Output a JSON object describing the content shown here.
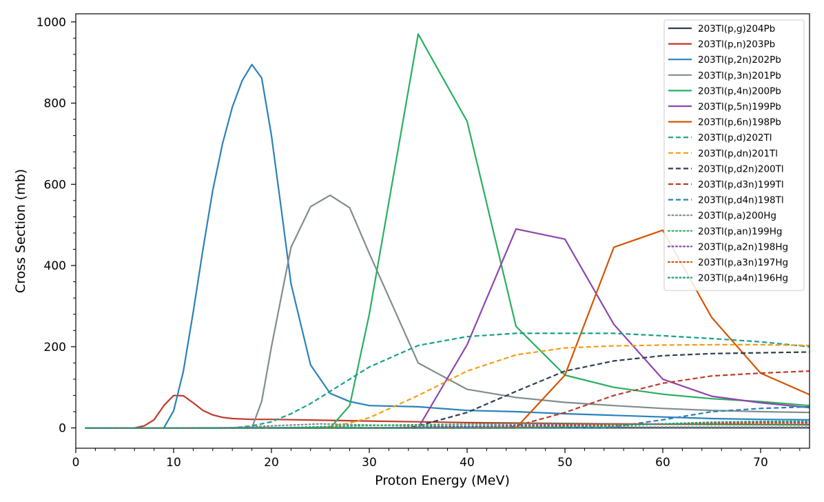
{
  "chart_data": {
    "type": "line",
    "title": "",
    "xlabel": "Proton Energy (MeV)",
    "ylabel": "Cross Section (mb)",
    "xlim": [
      0,
      75
    ],
    "ylim": [
      -50,
      1020
    ],
    "xticks": [
      0,
      10,
      20,
      30,
      40,
      50,
      60,
      70
    ],
    "yticks": [
      0,
      200,
      400,
      600,
      800,
      1000
    ],
    "grid": false,
    "legend_position": "top-right",
    "series": [
      {
        "name": "203Tl(p,g)204Pb",
        "color": "#2c3e50",
        "style": "solid",
        "points": [
          [
            1,
            0
          ],
          [
            10,
            0
          ],
          [
            20,
            0.5
          ],
          [
            30,
            0.5
          ],
          [
            40,
            0.3
          ],
          [
            50,
            0.2
          ],
          [
            60,
            0.2
          ],
          [
            75,
            0.2
          ]
        ]
      },
      {
        "name": "203Tl(p,n)203Pb",
        "color": "#c0392b",
        "style": "solid",
        "points": [
          [
            1,
            0
          ],
          [
            6,
            0
          ],
          [
            7,
            5
          ],
          [
            8,
            20
          ],
          [
            9,
            55
          ],
          [
            10,
            80
          ],
          [
            11,
            79
          ],
          [
            12,
            62
          ],
          [
            13,
            43
          ],
          [
            14,
            32
          ],
          [
            15,
            26
          ],
          [
            16,
            23
          ],
          [
            18,
            21
          ],
          [
            20,
            21
          ],
          [
            25,
            19
          ],
          [
            30,
            17
          ],
          [
            35,
            15
          ],
          [
            40,
            13
          ],
          [
            45,
            12
          ],
          [
            50,
            11
          ],
          [
            55,
            10
          ],
          [
            60,
            9
          ],
          [
            65,
            9
          ],
          [
            70,
            8
          ],
          [
            75,
            8
          ]
        ]
      },
      {
        "name": "203Tl(p,2n)202Pb",
        "color": "#2980b9",
        "style": "solid",
        "points": [
          [
            1,
            0
          ],
          [
            9,
            0
          ],
          [
            10,
            42
          ],
          [
            11,
            140
          ],
          [
            12,
            285
          ],
          [
            13,
            440
          ],
          [
            14,
            585
          ],
          [
            15,
            700
          ],
          [
            16,
            790
          ],
          [
            17,
            855
          ],
          [
            18,
            895
          ],
          [
            19,
            862
          ],
          [
            20,
            720
          ],
          [
            21,
            540
          ],
          [
            22,
            355
          ],
          [
            24,
            155
          ],
          [
            26,
            85
          ],
          [
            28,
            65
          ],
          [
            30,
            55
          ],
          [
            35,
            52
          ],
          [
            40,
            43
          ],
          [
            45,
            40
          ],
          [
            50,
            35
          ],
          [
            55,
            31
          ],
          [
            60,
            27
          ],
          [
            65,
            23
          ],
          [
            70,
            21
          ],
          [
            75,
            20
          ]
        ]
      },
      {
        "name": "203Tl(p,3n)201Pb",
        "color": "#7f8c8d",
        "style": "solid",
        "points": [
          [
            1,
            0
          ],
          [
            18,
            0
          ],
          [
            19,
            65
          ],
          [
            20,
            200
          ],
          [
            22,
            445
          ],
          [
            24,
            545
          ],
          [
            26,
            573
          ],
          [
            28,
            542
          ],
          [
            30,
            430
          ],
          [
            35,
            160
          ],
          [
            40,
            95
          ],
          [
            45,
            75
          ],
          [
            50,
            63
          ],
          [
            55,
            55
          ],
          [
            60,
            48
          ],
          [
            65,
            43
          ],
          [
            70,
            40
          ],
          [
            75,
            38
          ]
        ]
      },
      {
        "name": "203Tl(p,4n)200Pb",
        "color": "#27ae60",
        "style": "solid",
        "points": [
          [
            1,
            0
          ],
          [
            26,
            0
          ],
          [
            28,
            55
          ],
          [
            30,
            280
          ],
          [
            35,
            970
          ],
          [
            40,
            755
          ],
          [
            45,
            250
          ],
          [
            50,
            130
          ],
          [
            55,
            100
          ],
          [
            60,
            83
          ],
          [
            65,
            72
          ],
          [
            70,
            65
          ],
          [
            75,
            55
          ]
        ]
      },
      {
        "name": "203Tl(p,5n)199Pb",
        "color": "#8e44ad",
        "style": "solid",
        "points": [
          [
            1,
            0
          ],
          [
            35,
            0
          ],
          [
            40,
            205
          ],
          [
            45,
            490
          ],
          [
            50,
            465
          ],
          [
            55,
            255
          ],
          [
            60,
            120
          ],
          [
            65,
            78
          ],
          [
            70,
            62
          ],
          [
            75,
            50
          ]
        ]
      },
      {
        "name": "203Tl(p,6n)198Pb",
        "color": "#d35400",
        "style": "solid",
        "points": [
          [
            1,
            0
          ],
          [
            45,
            0
          ],
          [
            50,
            130
          ],
          [
            55,
            445
          ],
          [
            60,
            487
          ],
          [
            65,
            272
          ],
          [
            70,
            135
          ],
          [
            75,
            82
          ]
        ]
      },
      {
        "name": "203Tl(p,d)202Tl",
        "color": "#16a085",
        "style": "dashed",
        "points": [
          [
            1,
            0
          ],
          [
            16,
            0
          ],
          [
            18,
            5
          ],
          [
            20,
            15
          ],
          [
            22,
            35
          ],
          [
            24,
            60
          ],
          [
            26,
            90
          ],
          [
            28,
            120
          ],
          [
            30,
            150
          ],
          [
            35,
            203
          ],
          [
            40,
            225
          ],
          [
            45,
            233
          ],
          [
            50,
            233
          ],
          [
            55,
            233
          ],
          [
            60,
            227
          ],
          [
            65,
            220
          ],
          [
            70,
            212
          ],
          [
            75,
            200
          ]
        ]
      },
      {
        "name": "203Tl(p,dn)201Tl",
        "color": "#f39c12",
        "style": "dashed",
        "points": [
          [
            1,
            0
          ],
          [
            25,
            0
          ],
          [
            28,
            12
          ],
          [
            30,
            25
          ],
          [
            35,
            80
          ],
          [
            40,
            140
          ],
          [
            45,
            180
          ],
          [
            50,
            197
          ],
          [
            55,
            202
          ],
          [
            60,
            204
          ],
          [
            65,
            205
          ],
          [
            70,
            205
          ],
          [
            75,
            203
          ]
        ]
      },
      {
        "name": "203Tl(p,d2n)200Tl",
        "color": "#2c3e50",
        "style": "dashed",
        "points": [
          [
            1,
            0
          ],
          [
            34,
            0
          ],
          [
            35,
            5
          ],
          [
            40,
            38
          ],
          [
            45,
            90
          ],
          [
            50,
            140
          ],
          [
            55,
            165
          ],
          [
            60,
            178
          ],
          [
            65,
            183
          ],
          [
            70,
            185
          ],
          [
            75,
            187
          ]
        ]
      },
      {
        "name": "203Tl(p,d3n)199Tl",
        "color": "#c0392b",
        "style": "dashed",
        "points": [
          [
            1,
            0
          ],
          [
            44,
            0
          ],
          [
            45,
            5
          ],
          [
            50,
            38
          ],
          [
            55,
            80
          ],
          [
            60,
            110
          ],
          [
            65,
            128
          ],
          [
            70,
            135
          ],
          [
            75,
            140
          ]
        ]
      },
      {
        "name": "203Tl(p,d4n)198Tl",
        "color": "#2980b9",
        "style": "dashed",
        "points": [
          [
            1,
            0
          ],
          [
            54,
            0
          ],
          [
            55,
            3
          ],
          [
            60,
            20
          ],
          [
            65,
            40
          ],
          [
            70,
            48
          ],
          [
            75,
            52
          ]
        ]
      },
      {
        "name": "203Tl(p,a)200Hg",
        "color": "#7f8c8d",
        "style": "dotted",
        "points": [
          [
            1,
            0
          ],
          [
            15,
            0
          ],
          [
            20,
            5
          ],
          [
            25,
            10
          ],
          [
            30,
            7
          ],
          [
            35,
            5
          ],
          [
            40,
            4
          ],
          [
            45,
            3
          ],
          [
            50,
            3
          ],
          [
            60,
            2
          ],
          [
            75,
            2
          ]
        ]
      },
      {
        "name": "203Tl(p,an)199Hg",
        "color": "#27ae60",
        "style": "dotted",
        "points": [
          [
            1,
            0
          ],
          [
            20,
            0
          ],
          [
            25,
            3
          ],
          [
            30,
            6
          ],
          [
            35,
            8
          ],
          [
            40,
            9
          ],
          [
            45,
            10
          ],
          [
            50,
            10
          ],
          [
            55,
            10
          ],
          [
            60,
            9
          ],
          [
            65,
            8
          ],
          [
            70,
            8
          ],
          [
            75,
            7
          ]
        ]
      },
      {
        "name": "203Tl(p,a2n)198Hg",
        "color": "#8e44ad",
        "style": "dotted",
        "points": [
          [
            1,
            0
          ],
          [
            30,
            0
          ],
          [
            35,
            2
          ],
          [
            40,
            4
          ],
          [
            45,
            6
          ],
          [
            50,
            8
          ],
          [
            55,
            9
          ],
          [
            60,
            10
          ],
          [
            65,
            11
          ],
          [
            70,
            12
          ],
          [
            75,
            12
          ]
        ]
      },
      {
        "name": "203Tl(p,a3n)197Hg",
        "color": "#d35400",
        "style": "dotted",
        "points": [
          [
            1,
            0
          ],
          [
            40,
            0
          ],
          [
            45,
            2
          ],
          [
            50,
            5
          ],
          [
            55,
            8
          ],
          [
            60,
            10
          ],
          [
            65,
            12
          ],
          [
            70,
            13
          ],
          [
            75,
            14
          ]
        ]
      },
      {
        "name": "203Tl(p,a4n)196Hg",
        "color": "#16a085",
        "style": "dotted",
        "points": [
          [
            1,
            0
          ],
          [
            45,
            0
          ],
          [
            50,
            2
          ],
          [
            55,
            5
          ],
          [
            60,
            10
          ],
          [
            65,
            14
          ],
          [
            70,
            16
          ],
          [
            75,
            16
          ]
        ]
      }
    ]
  }
}
